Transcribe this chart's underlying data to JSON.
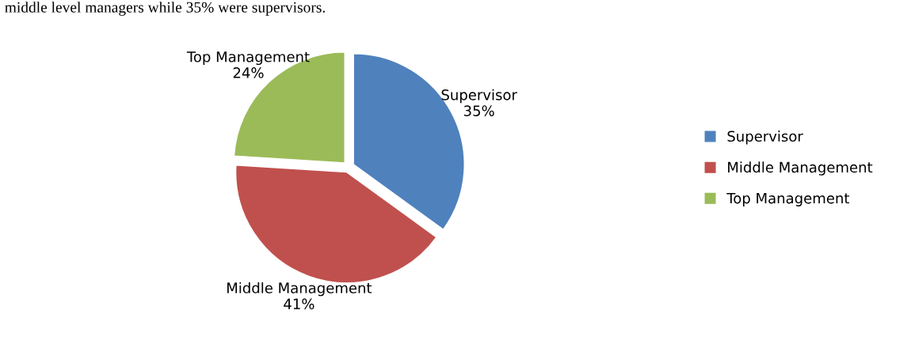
{
  "chart_data": {
    "type": "pie",
    "categories": [
      "Supervisor",
      "Middle Management",
      "Top Management"
    ],
    "values": [
      35,
      41,
      24
    ],
    "colors": [
      "#4f81bd",
      "#c0504d",
      "#9bbb59"
    ],
    "value_labels": [
      "35%",
      "41%",
      "24%"
    ],
    "legend": "right",
    "annotations": [
      "middle level managers while 35% were supervisors."
    ]
  }
}
